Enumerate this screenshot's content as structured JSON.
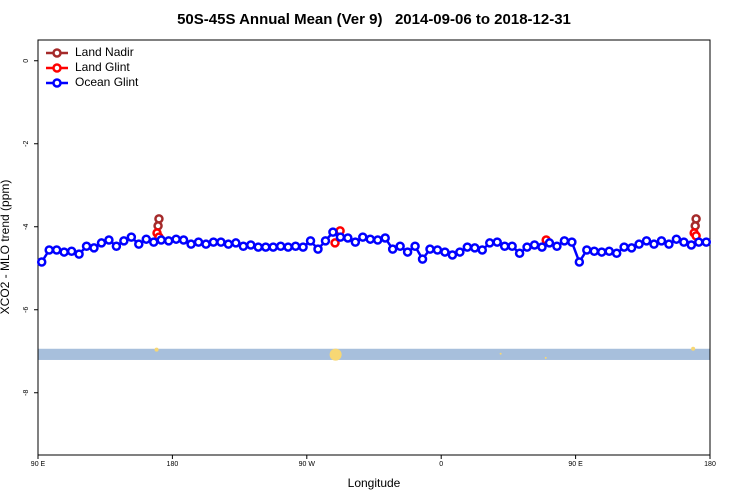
{
  "chart_data": {
    "type": "scatter",
    "title": "50S-45S Annual Mean (Ver 9)   2014-09-06 to 2018-12-31",
    "xlabel": "Longitude",
    "ylabel": "XCO2 - MLO trend (ppm)",
    "xlim": [
      90,
      540
    ],
    "ylim": [
      -9.5,
      0.5
    ],
    "xticks": [
      {
        "value": 90,
        "label": "90 E"
      },
      {
        "value": 180,
        "label": "180"
      },
      {
        "value": 270,
        "label": "90 W"
      },
      {
        "value": 360,
        "label": "0"
      },
      {
        "value": 450,
        "label": "90 E"
      },
      {
        "value": 540,
        "label": "180"
      }
    ],
    "yticks": [
      0,
      -2,
      -4,
      -6,
      -8
    ],
    "legend": "upper left",
    "series": [
      {
        "name": "Land Nadir",
        "color": "#a52a2a",
        "x": [
          170.4,
          171,
          530.1,
          530.7
        ],
        "values": [
          -3.98,
          -3.81,
          -3.98,
          -3.81
        ]
      },
      {
        "name": "Land Glint",
        "color": "#ff0000",
        "x": [
          169.7,
          171,
          288.9,
          292.3,
          430.3,
          529.4,
          530.7
        ],
        "values": [
          -4.15,
          -4.25,
          -4.39,
          -4.1,
          -4.32,
          -4.15,
          -4.22
        ]
      },
      {
        "name": "Ocean Glint",
        "color": "#0000ff",
        "line": true,
        "x": [
          92.5,
          97.5,
          102.5,
          107.5,
          112.5,
          117.5,
          122.5,
          127.5,
          132.5,
          137.5,
          142.5,
          147.5,
          152.5,
          157.5,
          162.5,
          167.5,
          172.5,
          177.5,
          182.5,
          187.5,
          192.5,
          197.5,
          202.5,
          207.5,
          212.5,
          217.5,
          222.5,
          227.5,
          232.5,
          237.5,
          242.5,
          247.5,
          252.5,
          257.5,
          262.5,
          267.5,
          272.5,
          277.5,
          282.5,
          287.5,
          292.5,
          297.5,
          302.5,
          307.5,
          312.5,
          317.5,
          322.5,
          327.5,
          332.5,
          337.5,
          342.5,
          347.5,
          352.5,
          357.5,
          362.5,
          367.5,
          372.5,
          377.5,
          382.5,
          387.5,
          392.5,
          397.5,
          402.5,
          407.5,
          412.5,
          417.5,
          422.5,
          427.5,
          432.5,
          437.5,
          442.5,
          447.5,
          452.5,
          457.5,
          462.5,
          467.5,
          472.5,
          477.5,
          482.5,
          487.5,
          492.5,
          497.5,
          502.5,
          507.5,
          512.5,
          517.5,
          522.5,
          527.5,
          532.5,
          537.5
        ],
        "values": [
          -4.85,
          -4.56,
          -4.56,
          -4.61,
          -4.59,
          -4.66,
          -4.47,
          -4.51,
          -4.39,
          -4.32,
          -4.47,
          -4.34,
          -4.25,
          -4.42,
          -4.3,
          -4.37,
          -4.32,
          -4.34,
          -4.3,
          -4.32,
          -4.42,
          -4.37,
          -4.42,
          -4.37,
          -4.37,
          -4.42,
          -4.39,
          -4.47,
          -4.44,
          -4.49,
          -4.49,
          -4.49,
          -4.47,
          -4.49,
          -4.47,
          -4.49,
          -4.34,
          -4.54,
          -4.34,
          -4.13,
          -4.25,
          -4.27,
          -4.37,
          -4.25,
          -4.3,
          -4.32,
          -4.27,
          -4.54,
          -4.47,
          -4.61,
          -4.47,
          -4.78,
          -4.54,
          -4.56,
          -4.61,
          -4.68,
          -4.61,
          -4.49,
          -4.51,
          -4.56,
          -4.39,
          -4.37,
          -4.47,
          -4.47,
          -4.64,
          -4.49,
          -4.44,
          -4.49,
          -4.39,
          -4.47,
          -4.34,
          -4.37,
          -4.85,
          -4.56,
          -4.59,
          -4.61,
          -4.59,
          -4.64,
          -4.49,
          -4.51,
          -4.42,
          -4.34,
          -4.42,
          -4.34,
          -4.42,
          -4.3,
          -4.37,
          -4.44,
          -4.37,
          -4.37
        ]
      }
    ],
    "band": {
      "color": "#a7bfdc",
      "range": [
        -6.94,
        -7.21
      ]
    },
    "highlight_points": {
      "color": "#f7d774",
      "x": [
        169.4,
        289.3,
        399.8,
        430,
        528.7
      ],
      "values": [
        -6.96,
        -7.08,
        -7.06,
        -7.16,
        -6.94
      ],
      "sizes": [
        2,
        6,
        1,
        1,
        2
      ]
    }
  }
}
